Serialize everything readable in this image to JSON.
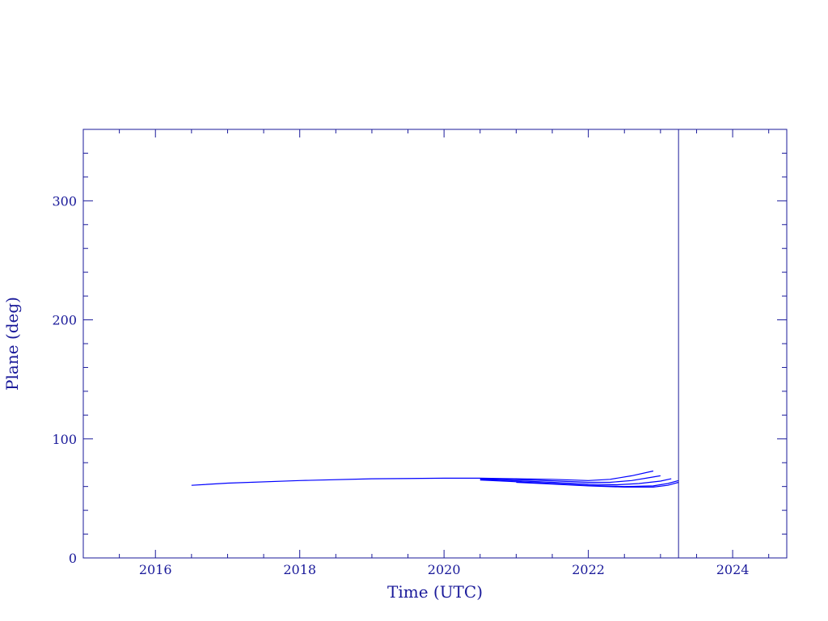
{
  "chart_data": {
    "type": "line",
    "xlabel": "Time (UTC)",
    "ylabel": "Plane (deg)",
    "xlim": [
      2015.0,
      2024.75
    ],
    "ylim": [
      0,
      360
    ],
    "x_ticks": [
      2016,
      2018,
      2020,
      2022,
      2024
    ],
    "x_tick_labels": [
      "2016",
      "2018",
      "2020",
      "2022",
      "2024"
    ],
    "y_ticks": [
      0,
      100,
      200,
      300
    ],
    "y_tick_labels": [
      "0",
      "100",
      "200",
      "300"
    ],
    "grid": false,
    "colors": {
      "axes": "#1a1a9a",
      "series": "#0000ff",
      "marker_line": "#1a1a9a"
    },
    "vertical_line_x": 2023.25,
    "series": [
      {
        "x": [
          2016.5,
          2017.0,
          2018.0,
          2019.0,
          2020.0,
          2020.5,
          2021.0,
          2021.5,
          2022.0,
          2022.3,
          2022.6,
          2022.9
        ],
        "y": [
          61,
          62.8,
          65,
          66.5,
          67,
          67,
          66.5,
          66,
          65,
          66,
          69,
          73
        ]
      },
      {
        "x": [
          2020.5,
          2021.0,
          2021.5,
          2022.0,
          2022.3,
          2022.6,
          2022.8,
          2023.0
        ],
        "y": [
          66.5,
          65.8,
          64.8,
          63.5,
          63.5,
          65,
          67,
          69
        ]
      },
      {
        "x": [
          2020.5,
          2021.0,
          2021.5,
          2022.0,
          2022.4,
          2022.7,
          2023.0,
          2023.15
        ],
        "y": [
          66,
          64.8,
          63.5,
          62,
          61.5,
          62.5,
          64.5,
          66.5
        ]
      },
      {
        "x": [
          2020.5,
          2021.0,
          2021.5,
          2022.0,
          2022.5,
          2022.9,
          2023.1,
          2023.25
        ],
        "y": [
          65.5,
          64,
          62.5,
          61,
          60,
          60.5,
          62.5,
          65
        ]
      },
      {
        "x": [
          2021.0,
          2021.5,
          2022.0,
          2022.5,
          2022.9,
          2023.1,
          2023.25
        ],
        "y": [
          63.5,
          62,
          60.5,
          59.5,
          59.5,
          61,
          63.5
        ]
      }
    ]
  }
}
